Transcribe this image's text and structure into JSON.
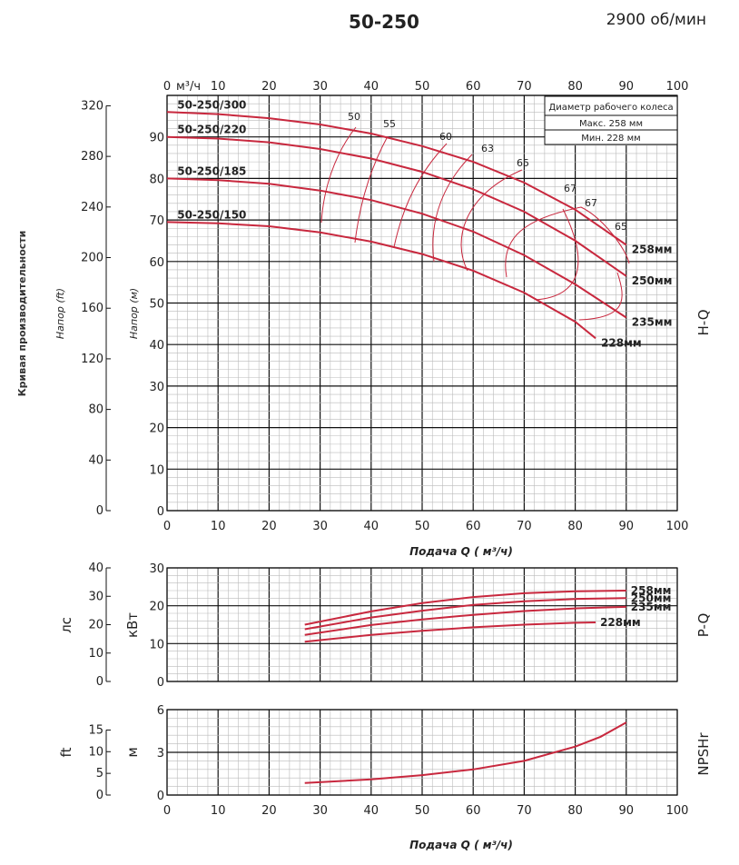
{
  "header": {
    "title": "50-250",
    "speed": "2900 об/мин"
  },
  "colors": {
    "curve": "#c8283e",
    "grid_major": "#111111",
    "grid_minor": "#bbbbbb"
  },
  "legend": {
    "title": "Диаметр рабочего колеса",
    "max": "Макс. 258 мм",
    "min": "Мин. 228 мм"
  },
  "side_title": "Кривая производительности",
  "chart_data": [
    {
      "type": "line",
      "name": "H-Q",
      "side_label": "H-Q",
      "xlabel": "Подача Q ( м³/ч)",
      "top_axis_unit": "м³/ч",
      "ylabel_left": "Напор (ft)",
      "ylabel_right": "Напор (м)",
      "xlim": [
        0,
        100
      ],
      "ylim": [
        0,
        100
      ],
      "x_ticks": [
        0,
        10,
        20,
        30,
        40,
        50,
        60,
        70,
        80,
        90,
        100
      ],
      "y_ticks": [
        0,
        10,
        20,
        30,
        40,
        50,
        60,
        70,
        80,
        90
      ],
      "ft_ticks": [
        0,
        40,
        80,
        120,
        160,
        200,
        240,
        280,
        320
      ],
      "series": [
        {
          "name": "258мм",
          "model": "50-250/300",
          "x": [
            0,
            10,
            20,
            30,
            40,
            50,
            60,
            70,
            80,
            90
          ],
          "y": [
            96,
            95.5,
            94.5,
            93,
            90.8,
            87.8,
            84,
            79,
            72.5,
            64
          ]
        },
        {
          "name": "250мм",
          "model": "50-250/220",
          "x": [
            0,
            10,
            20,
            30,
            40,
            50,
            60,
            70,
            80,
            90
          ],
          "y": [
            90,
            89.6,
            88.7,
            87.1,
            84.8,
            81.6,
            77.4,
            72,
            65,
            56.5
          ]
        },
        {
          "name": "235мм",
          "model": "50-250/185",
          "x": [
            0,
            10,
            20,
            30,
            40,
            50,
            60,
            70,
            80,
            90
          ],
          "y": [
            80,
            79.6,
            78.7,
            77.1,
            74.8,
            71.5,
            67.2,
            61.5,
            54.5,
            46.5
          ]
        },
        {
          "name": "228мм",
          "model": "50-250/150",
          "x": [
            0,
            10,
            20,
            30,
            40,
            50,
            60,
            70,
            80,
            84
          ],
          "y": [
            69.5,
            69.2,
            68.5,
            67,
            64.8,
            61.8,
            57.8,
            52.5,
            45.5,
            41.5
          ]
        }
      ],
      "efficiency_labels": [
        "50",
        "55",
        "60",
        "63",
        "65",
        "67",
        "67",
        "65"
      ]
    },
    {
      "type": "line",
      "name": "P-Q",
      "side_label": "P-Q",
      "ylabel_left": "лс",
      "ylabel_right": "кВт",
      "xlim": [
        0,
        100
      ],
      "ylim": [
        0,
        30
      ],
      "y_ticks": [
        0,
        10,
        20,
        30
      ],
      "hp_ticks": [
        0,
        10,
        20,
        30,
        40
      ],
      "series": [
        {
          "name": "258мм",
          "x": [
            27,
            40,
            50,
            60,
            70,
            80,
            90
          ],
          "y": [
            15,
            18.5,
            20.7,
            22.3,
            23.3,
            23.8,
            24
          ]
        },
        {
          "name": "250мм",
          "x": [
            27,
            40,
            50,
            60,
            70,
            80,
            90
          ],
          "y": [
            13.8,
            16.9,
            18.7,
            20.2,
            21.2,
            21.8,
            22
          ]
        },
        {
          "name": "235мм",
          "x": [
            27,
            40,
            50,
            60,
            70,
            80,
            90
          ],
          "y": [
            12.3,
            14.9,
            16.4,
            17.6,
            18.6,
            19.3,
            19.7
          ]
        },
        {
          "name": "228мм",
          "x": [
            27,
            40,
            50,
            60,
            70,
            80,
            84
          ],
          "y": [
            10.5,
            12.3,
            13.4,
            14.3,
            15,
            15.5,
            15.6
          ]
        }
      ]
    },
    {
      "type": "line",
      "name": "NPSHr",
      "side_label": "NPSHr",
      "xlabel": "Подача Q ( м³/ч)",
      "ylabel_left": "ft",
      "ylabel_right": "м",
      "xlim": [
        0,
        100
      ],
      "ylim": [
        0,
        6
      ],
      "y_ticks": [
        0,
        3,
        6
      ],
      "ft_ticks": [
        0,
        5,
        10,
        15
      ],
      "series": [
        {
          "name": "NPSHr",
          "x": [
            27,
            40,
            50,
            60,
            70,
            80,
            85,
            90
          ],
          "y": [
            0.85,
            1.1,
            1.4,
            1.8,
            2.4,
            3.4,
            4.1,
            5.1
          ]
        }
      ]
    }
  ]
}
